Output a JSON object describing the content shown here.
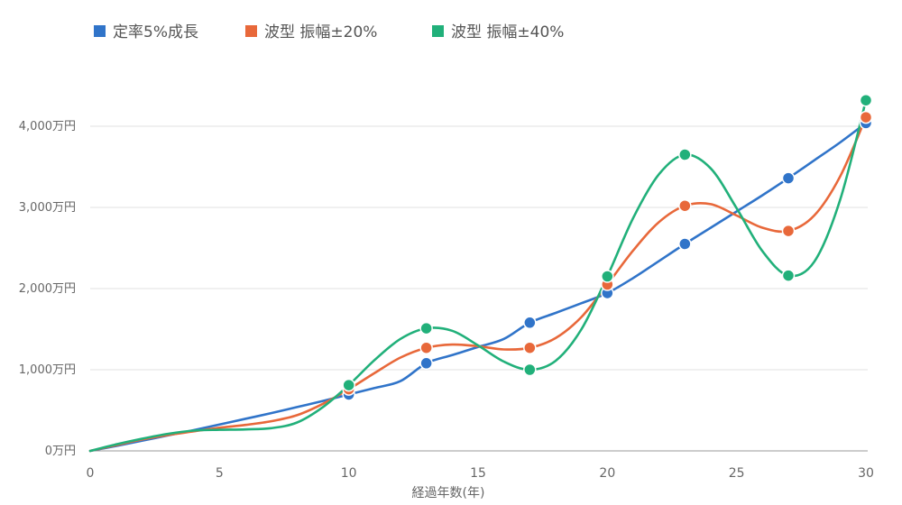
{
  "chart_data": {
    "type": "line",
    "title": "",
    "xlabel": "経過年数(年)",
    "ylabel": "",
    "xlim": [
      0,
      30
    ],
    "ylim": [
      0,
      4500
    ],
    "x_ticks": [
      0,
      5,
      10,
      15,
      20,
      25,
      30
    ],
    "x_tick_labels": [
      "0",
      "5",
      "10",
      "15",
      "20",
      "25",
      "30"
    ],
    "y_ticks": [
      0,
      1000,
      2000,
      3000,
      4000
    ],
    "y_tick_labels": [
      "0万円",
      "1,000万円",
      "2,000万円",
      "3,000万円",
      "4,000万円"
    ],
    "grid": "horizontal",
    "legend_position": "top-left",
    "x": [
      0,
      1,
      2,
      3,
      4,
      5,
      6,
      7,
      8,
      9,
      10,
      11,
      12,
      13,
      14,
      15,
      16,
      17,
      18,
      19,
      20,
      21,
      22,
      23,
      24,
      25,
      26,
      27,
      28,
      29,
      30
    ],
    "series": [
      {
        "name": "定率5%成長",
        "color": "#3074c9",
        "values": [
          0,
          60,
          125,
          190,
          255,
          325,
          395,
          465,
          540,
          615,
          695,
          775,
          860,
          1080,
          1180,
          1280,
          1380,
          1580,
          1700,
          1820,
          1945,
          2130,
          2340,
          2550,
          2750,
          2950,
          3150,
          3360,
          3580,
          3800,
          4040
        ],
        "marker_x": [
          10,
          13,
          17,
          20,
          23,
          27,
          30
        ]
      },
      {
        "name": "波型 振幅±20%",
        "color": "#e8683a",
        "values": [
          0,
          70,
          140,
          195,
          240,
          285,
          320,
          365,
          440,
          580,
          760,
          960,
          1150,
          1270,
          1310,
          1290,
          1250,
          1270,
          1390,
          1650,
          2050,
          2470,
          2820,
          3020,
          3040,
          2900,
          2750,
          2710,
          2900,
          3380,
          4110
        ],
        "marker_x": [
          10,
          13,
          17,
          20,
          23,
          27,
          30
        ]
      },
      {
        "name": "波型 振幅±40%",
        "color": "#21b07a",
        "values": [
          0,
          80,
          150,
          210,
          250,
          260,
          265,
          280,
          350,
          540,
          810,
          1120,
          1380,
          1510,
          1480,
          1300,
          1100,
          1000,
          1110,
          1500,
          2150,
          2870,
          3410,
          3650,
          3480,
          2990,
          2460,
          2160,
          2330,
          3090,
          4320
        ],
        "marker_x": [
          10,
          13,
          17,
          20,
          23,
          27,
          30
        ]
      }
    ]
  }
}
